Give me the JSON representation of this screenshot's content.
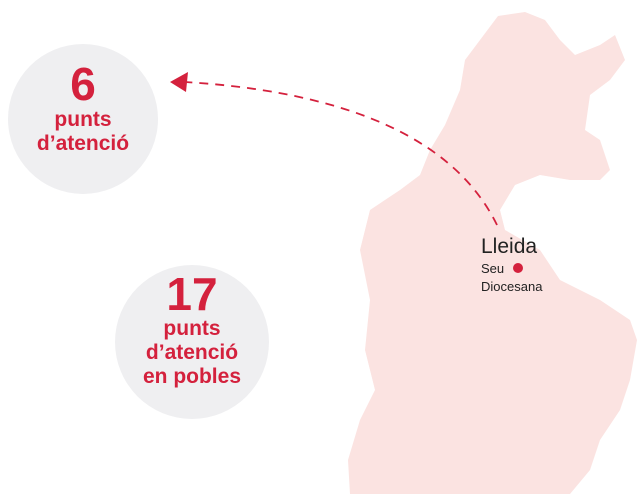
{
  "circles": [
    {
      "number": "6",
      "lines": [
        "punts",
        "d’atenció"
      ]
    },
    {
      "number": "17",
      "lines": [
        "punts",
        "d’atenció",
        "en pobles"
      ]
    }
  ],
  "city": {
    "name": "Lleida",
    "lines": [
      "Seu",
      "Diocesana"
    ]
  }
}
